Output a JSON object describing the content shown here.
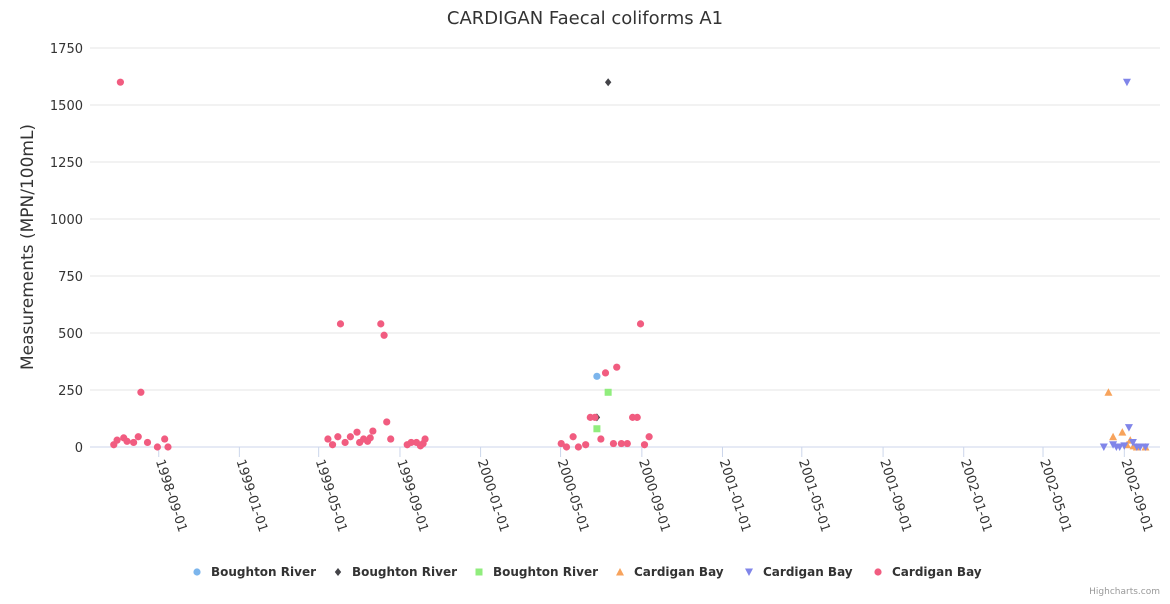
{
  "chart_data": {
    "type": "scatter",
    "title": "CARDIGAN Faecal coliforms A1",
    "ylabel": "Measurements (MPN/100mL)",
    "xlabel": "",
    "ylim": [
      0,
      1750
    ],
    "xlim": [
      "1998-05-20",
      "2002-10-25"
    ],
    "y_ticks": [
      0,
      250,
      500,
      750,
      1000,
      1250,
      1500,
      1750
    ],
    "x_ticks": [
      "1998-09-01",
      "1999-01-01",
      "1999-05-01",
      "1999-09-01",
      "2000-01-01",
      "2000-05-01",
      "2000-09-01",
      "2001-01-01",
      "2001-05-01",
      "2001-09-01",
      "2002-01-01",
      "2002-05-01",
      "2002-09-01"
    ],
    "grid": true,
    "legend_position": "bottom",
    "series": [
      {
        "name": "Boughton River",
        "marker": "circle",
        "color": "#7cb5ec",
        "points": [
          [
            "2000-06-25",
            310
          ]
        ]
      },
      {
        "name": "Boughton River",
        "marker": "diamond",
        "color": "#434348",
        "points": [
          [
            "2000-06-25",
            130
          ],
          [
            "2000-07-12",
            1600
          ]
        ]
      },
      {
        "name": "Boughton River",
        "marker": "square",
        "color": "#90ed7d",
        "points": [
          [
            "2000-06-25",
            80
          ],
          [
            "2000-07-12",
            240
          ]
        ]
      },
      {
        "name": "Cardigan Bay",
        "marker": "triangle",
        "color": "#f7a35c",
        "points": [
          [
            "2002-08-08",
            240
          ],
          [
            "2002-08-15",
            45
          ],
          [
            "2002-08-29",
            65
          ],
          [
            "2002-09-05",
            10
          ],
          [
            "2002-09-10",
            30
          ],
          [
            "2002-09-15",
            5
          ],
          [
            "2002-09-20",
            0
          ],
          [
            "2002-10-03",
            0
          ]
        ]
      },
      {
        "name": "Cardigan Bay",
        "marker": "triangle-down",
        "color": "#8085e9",
        "points": [
          [
            "2002-08-01",
            0
          ],
          [
            "2002-08-15",
            10
          ],
          [
            "2002-08-20",
            0
          ],
          [
            "2002-08-25",
            0
          ],
          [
            "2002-09-01",
            5
          ],
          [
            "2002-09-05",
            1600
          ],
          [
            "2002-09-08",
            85
          ],
          [
            "2002-09-14",
            20
          ],
          [
            "2002-09-20",
            0
          ],
          [
            "2002-09-25",
            0
          ],
          [
            "2002-10-03",
            0
          ]
        ]
      },
      {
        "name": "Cardigan Bay",
        "marker": "circle",
        "color": "#f15c80",
        "points": [
          [
            "1998-06-25",
            10
          ],
          [
            "1998-06-30",
            30
          ],
          [
            "1998-07-05",
            1600
          ],
          [
            "1998-07-10",
            40
          ],
          [
            "1998-07-15",
            25
          ],
          [
            "1998-07-25",
            20
          ],
          [
            "1998-08-01",
            45
          ],
          [
            "1998-08-05",
            240
          ],
          [
            "1998-08-15",
            20
          ],
          [
            "1998-08-30",
            0
          ],
          [
            "1998-09-10",
            35
          ],
          [
            "1998-09-15",
            0
          ],
          [
            "1999-05-15",
            35
          ],
          [
            "1999-05-22",
            10
          ],
          [
            "1999-05-30",
            45
          ],
          [
            "1999-06-03",
            540
          ],
          [
            "1999-06-10",
            20
          ],
          [
            "1999-06-18",
            45
          ],
          [
            "1999-06-28",
            65
          ],
          [
            "1999-07-02",
            20
          ],
          [
            "1999-07-08",
            35
          ],
          [
            "1999-07-14",
            25
          ],
          [
            "1999-07-18",
            40
          ],
          [
            "1999-07-22",
            70
          ],
          [
            "1999-08-03",
            540
          ],
          [
            "1999-08-08",
            490
          ],
          [
            "1999-08-12",
            110
          ],
          [
            "1999-08-18",
            35
          ],
          [
            "1999-09-12",
            10
          ],
          [
            "1999-09-18",
            20
          ],
          [
            "1999-09-26",
            20
          ],
          [
            "1999-10-02",
            5
          ],
          [
            "1999-10-06",
            15
          ],
          [
            "1999-10-09",
            35
          ],
          [
            "2000-05-02",
            15
          ],
          [
            "2000-05-10",
            0
          ],
          [
            "2000-05-20",
            45
          ],
          [
            "2000-05-28",
            0
          ],
          [
            "2000-06-08",
            10
          ],
          [
            "2000-06-15",
            130
          ],
          [
            "2000-06-22",
            130
          ],
          [
            "2000-07-01",
            35
          ],
          [
            "2000-07-08",
            325
          ],
          [
            "2000-07-20",
            15
          ],
          [
            "2000-07-25",
            350
          ],
          [
            "2000-08-01",
            15
          ],
          [
            "2000-08-10",
            15
          ],
          [
            "2000-08-18",
            130
          ],
          [
            "2000-08-25",
            130
          ],
          [
            "2000-08-30",
            540
          ],
          [
            "2000-09-05",
            10
          ],
          [
            "2000-09-12",
            45
          ]
        ]
      }
    ]
  },
  "credits": "Highcharts.com"
}
